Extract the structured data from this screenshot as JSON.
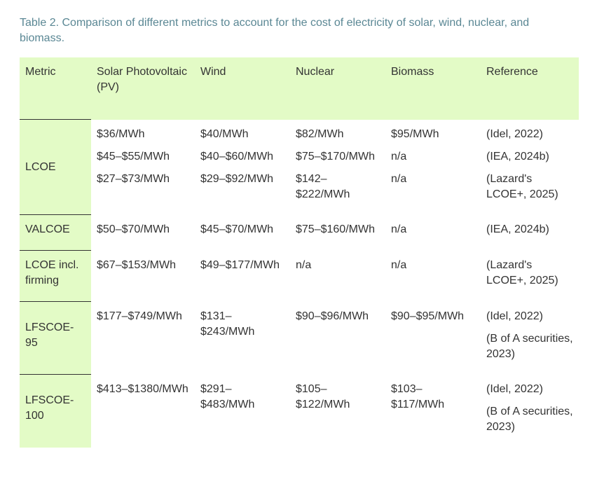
{
  "caption": "Table 2. Comparison of different metrics to account for the cost of electricity of solar, wind, nuclear, and biomass.",
  "table": {
    "header": [
      "Metric",
      "Solar Photovoltaic (PV)",
      "Wind",
      "Nuclear",
      "Biomass",
      "Reference"
    ],
    "rows": [
      {
        "metric": "LCOE",
        "sub_rows": [
          {
            "values": [
              "$36/MWh",
              "$40/MWh",
              "$82/MWh",
              "$95/MWh"
            ],
            "references": [
              "(Idel, 2022)"
            ]
          },
          {
            "values": [
              "$45–$55/MWh",
              "$40–$60/MWh",
              "$75–$170/MWh",
              "n/a"
            ],
            "references": [
              "(IEA, 2024b)"
            ]
          },
          {
            "values": [
              "$27–$73/MWh",
              "$29–$92/MWh",
              "$142–$222/MWh",
              "n/a"
            ],
            "references": [
              "(Lazard's LCOE+, 2025)"
            ]
          }
        ]
      },
      {
        "metric": "VALCOE",
        "sub_rows": [
          {
            "values": [
              "$50–$70/MWh",
              "$45–$70/MWh",
              "$75–$160/MWh",
              "n/a"
            ],
            "references": [
              "(IEA, 2024b)"
            ]
          }
        ]
      },
      {
        "metric": "LCOE incl. firming",
        "sub_rows": [
          {
            "values": [
              "$67–$153/MWh",
              "$49–$177/MWh",
              "n/a",
              "n/a"
            ],
            "references": [
              "(Lazard's LCOE+, 2025)"
            ]
          }
        ]
      },
      {
        "metric": "LFSCOE-95",
        "sub_rows": [
          {
            "values": [
              "$177–$749/MWh",
              "$131–$243/MWh",
              "$90–$96/MWh",
              "$90–$95/MWh"
            ],
            "references": [
              "(Idel, 2022)",
              "(B of A securities, 2023)"
            ]
          }
        ]
      },
      {
        "metric": "LFSCOE-100",
        "sub_rows": [
          {
            "values": [
              "$413–$1380/MWh",
              "$291–$483/MWh",
              "$105–$122/MWh",
              "$103–$117/MWh"
            ],
            "references": [
              "(Idel, 2022)",
              "(B of A securities, 2023)"
            ]
          }
        ]
      }
    ]
  }
}
